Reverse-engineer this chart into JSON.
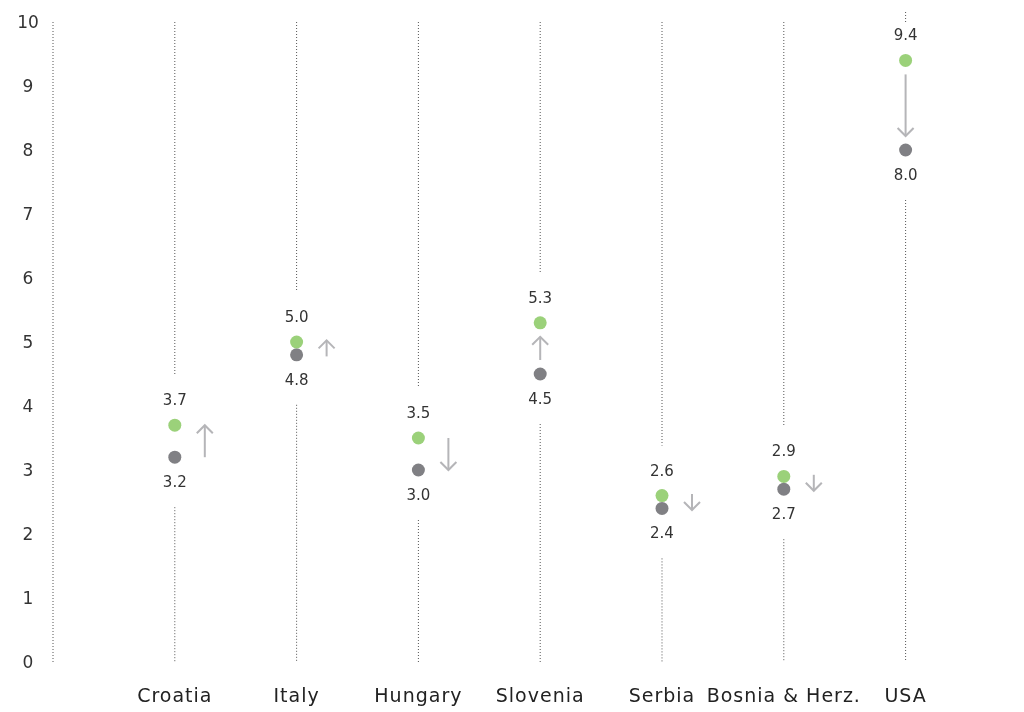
{
  "chart_data": {
    "type": "scatter",
    "categories": [
      "Croatia",
      "Italy",
      "Hungary",
      "Slovenia",
      "Serbia",
      "Bosnia & Herz.",
      "USA"
    ],
    "series": [
      {
        "values": [
          3.2,
          4.8,
          3.5,
          4.5,
          2.6,
          2.9,
          9.4
        ],
        "value_labels": [
          "3.2",
          "4.8",
          "3.5",
          "4.5",
          "2.6",
          "2.9",
          "9.4"
        ],
        "colors": [
          "#808084",
          "#808084",
          "#9bd17a",
          "#808084",
          "#9bd17a",
          "#9bd17a",
          "#9bd17a"
        ]
      },
      {
        "values": [
          3.7,
          5,
          3,
          5.3,
          2.4,
          2.7,
          8
        ],
        "value_labels": [
          "3.7",
          "5.0",
          "3.0",
          "5.3",
          "2.4",
          "2.7",
          "8.0"
        ],
        "colors": [
          "#9bd17a",
          "#9bd17a",
          "#808084",
          "#9bd17a",
          "#808084",
          "#808084",
          "#808084"
        ]
      }
    ],
    "ylim": [
      0,
      10
    ],
    "yticks": [
      0,
      1,
      2,
      3,
      4,
      5,
      6,
      7,
      8,
      9,
      10
    ],
    "grid": "x",
    "marker": "circle"
  }
}
